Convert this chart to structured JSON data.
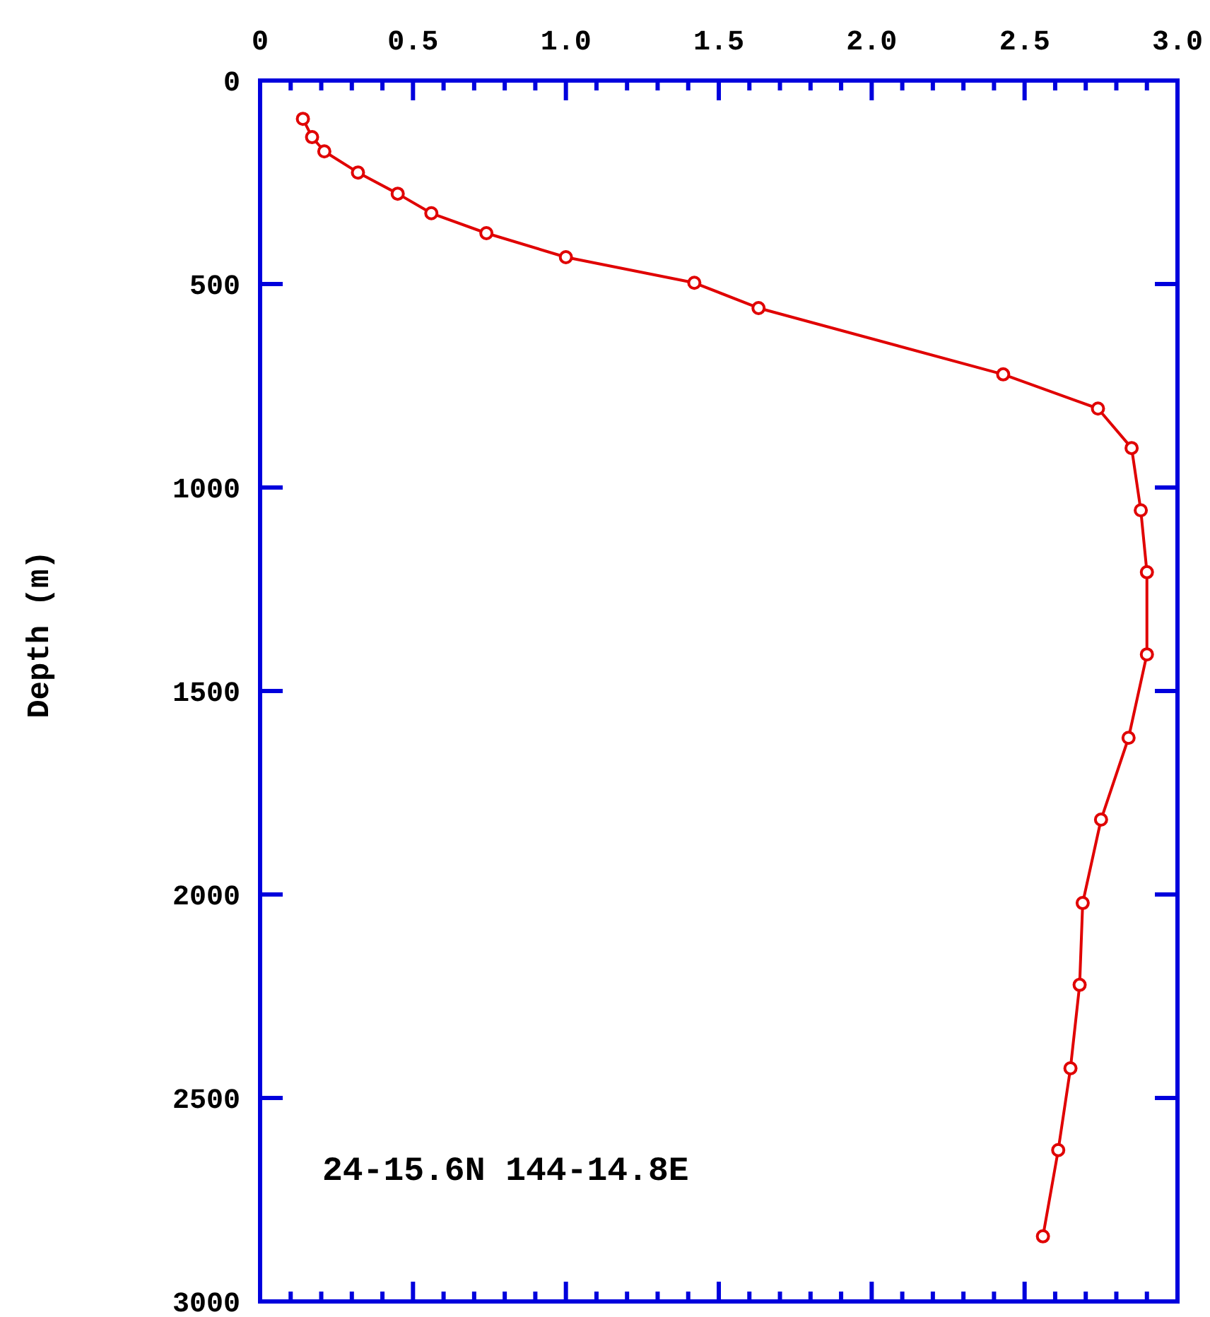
{
  "chart_data": {
    "type": "line",
    "ylabel": "Depth (m)",
    "annotations": [
      "24-15.6N 144-14.8E"
    ],
    "xlim": [
      0,
      3
    ],
    "xticks": [
      0,
      {
        "value": 0.1,
        "label": null
      },
      {
        "value": 0.2,
        "label": null
      },
      {
        "value": 0.3,
        "label": null
      },
      {
        "value": 0.4,
        "label": null
      },
      0.5,
      {
        "value": 0.6,
        "label": null
      },
      {
        "value": 0.7,
        "label": null
      },
      {
        "value": 0.8,
        "label": null
      },
      {
        "value": 0.9,
        "label": null
      },
      {
        "value": 1,
        "label": "1.0"
      },
      {
        "value": 1.1,
        "label": null
      },
      {
        "value": 1.2,
        "label": null
      },
      {
        "value": 1.3,
        "label": null
      },
      {
        "value": 1.4,
        "label": null
      },
      1.5,
      {
        "value": 1.6,
        "label": null
      },
      {
        "value": 1.7,
        "label": null
      },
      {
        "value": 1.8,
        "label": null
      },
      {
        "value": 1.9,
        "label": null
      },
      {
        "value": 2,
        "label": "2.0"
      },
      {
        "value": 2.1,
        "label": null
      },
      {
        "value": 2.2,
        "label": null
      },
      {
        "value": 2.3,
        "label": null
      },
      {
        "value": 2.4,
        "label": null
      },
      2.5,
      {
        "value": 2.6,
        "label": null
      },
      {
        "value": 2.7,
        "label": null
      },
      {
        "value": 2.8,
        "label": null
      },
      {
        "value": 2.9,
        "label": null
      },
      {
        "value": 3,
        "label": "3.0"
      }
    ],
    "ylim": [
      3000,
      0
    ],
    "yticks": [
      0,
      500,
      1000,
      1500,
      2000,
      2500,
      3000
    ],
    "marker": "circle",
    "line_style": "solid",
    "grid": false,
    "series": [
      {
        "color": "#e00000",
        "x": [
          0.14,
          0.17,
          0.21,
          0.32,
          0.45,
          0.56,
          0.74,
          1.0,
          1.42,
          1.63,
          2.43,
          2.74,
          2.85,
          2.88,
          2.9,
          2.9,
          2.84,
          2.75,
          2.69,
          2.68,
          2.65,
          2.61,
          2.56
        ],
        "values": [
          94,
          139,
          174,
          226,
          278,
          326,
          375,
          434,
          497,
          559,
          722,
          806,
          903,
          1056,
          1208,
          1410,
          1615,
          1816,
          2021,
          2222,
          2427,
          2628,
          2840
        ]
      }
    ]
  }
}
